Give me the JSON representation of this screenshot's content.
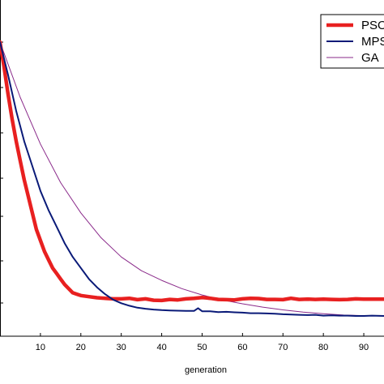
{
  "chart_data": {
    "type": "line",
    "title": "",
    "xlabel": "generation",
    "ylabel": "",
    "xlim": [
      0,
      95
    ],
    "ylim": [
      0,
      100
    ],
    "x_ticks": [
      10,
      20,
      30,
      40,
      50,
      60,
      70,
      80,
      90
    ],
    "x_tick_labels": [
      "10",
      "20",
      "30",
      "40",
      "50",
      "60",
      "70",
      "80",
      "90"
    ],
    "grid": false,
    "legend_position": "top-right",
    "series": [
      {
        "name": "PSO",
        "color": "#e82020",
        "x": [
          0,
          1,
          2,
          3,
          4,
          5,
          6,
          7,
          8,
          9,
          10,
          11,
          12,
          13,
          14,
          15,
          16,
          17,
          18,
          19,
          20,
          22,
          24,
          26,
          28,
          30,
          32,
          34,
          36,
          38,
          40,
          42,
          44,
          46,
          48,
          50,
          52,
          54,
          56,
          58,
          60,
          62,
          64,
          66,
          68,
          70,
          72,
          74,
          76,
          78,
          80,
          82,
          84,
          86,
          88,
          90,
          92,
          95
        ],
        "y": [
          100,
          91,
          81,
          72,
          64,
          57,
          50,
          44,
          38,
          32,
          28,
          24,
          21,
          18,
          16,
          14,
          12,
          10.5,
          9,
          8.5,
          8,
          7.6,
          7.2,
          7.0,
          6.8,
          6.8,
          7.0,
          6.5,
          6.8,
          6.3,
          6.2,
          6.6,
          6.4,
          6.8,
          7.0,
          7.3,
          7.0,
          6.6,
          6.5,
          6.4,
          6.8,
          7.0,
          6.9,
          6.6,
          6.6,
          6.5,
          7.0,
          6.6,
          6.7,
          6.6,
          6.7,
          6.6,
          6.5,
          6.6,
          6.8,
          6.7,
          6.7,
          6.7
        ]
      },
      {
        "name": "MPSO",
        "color": "#0a1a78",
        "x": [
          0,
          2,
          4,
          6,
          8,
          10,
          12,
          14,
          16,
          18,
          20,
          22,
          24,
          26,
          28,
          30,
          32,
          34,
          36,
          38,
          40,
          42,
          44,
          46,
          48,
          49,
          50,
          52,
          54,
          56,
          58,
          60,
          62,
          64,
          66,
          68,
          70,
          72,
          74,
          76,
          78,
          80,
          82,
          84,
          86,
          88,
          90,
          92,
          95
        ],
        "y": [
          100,
          88,
          75,
          64,
          55,
          46,
          39,
          33,
          27,
          22,
          18,
          14,
          11,
          8.5,
          6.5,
          5.2,
          4.3,
          3.6,
          3.2,
          2.9,
          2.7,
          2.6,
          2.5,
          2.4,
          2.4,
          3.4,
          2.3,
          2.3,
          2.0,
          2.1,
          1.9,
          1.8,
          1.6,
          1.6,
          1.5,
          1.4,
          1.2,
          1.1,
          1.0,
          0.9,
          1.0,
          0.7,
          0.8,
          0.7,
          0.7,
          0.6,
          0.6,
          0.7,
          0.6
        ]
      },
      {
        "name": "GA",
        "color": "#8a2a8a",
        "x": [
          0,
          5,
          10,
          15,
          20,
          25,
          30,
          35,
          40,
          45,
          50,
          55,
          60,
          65,
          70,
          75,
          80,
          85,
          90,
          95
        ],
        "y": [
          100,
          80,
          63,
          49,
          38,
          29,
          22,
          17,
          13.5,
          10.5,
          8.2,
          6.4,
          5.0,
          3.8,
          2.8,
          2.0,
          1.4,
          0.9,
          0.7,
          0.6
        ]
      }
    ]
  }
}
